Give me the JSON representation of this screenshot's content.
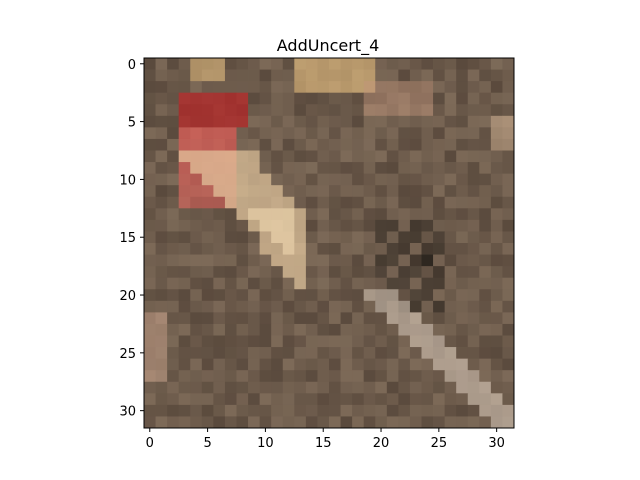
{
  "chart_data": {
    "type": "heatmap",
    "title": "AddUncert_4",
    "image_size": [
      32,
      32
    ],
    "x_ticks": [
      0,
      5,
      10,
      15,
      20,
      25,
      30
    ],
    "y_ticks": [
      0,
      5,
      10,
      15,
      20,
      25,
      30
    ],
    "xlim": [
      -0.5,
      31.5
    ],
    "ylim": [
      31.5,
      -0.5
    ],
    "palette": {
      "background": "#6e5a4a",
      "texture_dark": "#5a4a3d",
      "texture_light": "#7d6a58",
      "red_crest": "#b02a2a",
      "red_throat": "#e0605a",
      "breast_cream": "#e6c9a0",
      "breast_pale": "#f0d8b0",
      "wing_dark": "#2e2720",
      "branch_light": "#d8c8b8",
      "top_highlight": "#e8c080"
    }
  }
}
